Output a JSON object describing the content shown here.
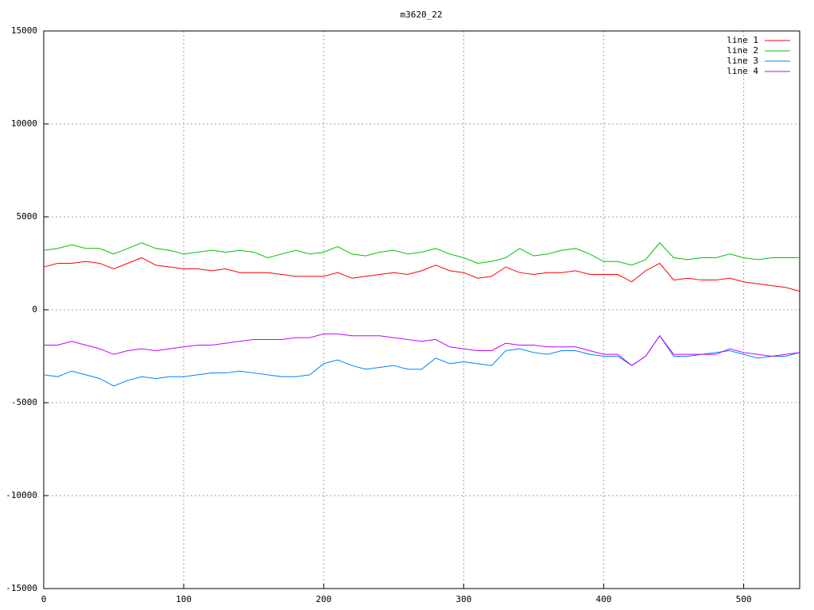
{
  "chart_data": {
    "type": "line",
    "title": "m3620_22",
    "x": [
      0,
      10,
      20,
      30,
      40,
      50,
      60,
      70,
      80,
      90,
      100,
      110,
      120,
      130,
      140,
      150,
      160,
      170,
      180,
      190,
      200,
      210,
      220,
      230,
      240,
      250,
      260,
      270,
      280,
      290,
      300,
      310,
      320,
      330,
      340,
      350,
      360,
      370,
      380,
      390,
      400,
      410,
      420,
      430,
      440,
      450,
      460,
      470,
      480,
      490,
      500,
      510,
      520,
      530,
      540
    ],
    "series": [
      {
        "name": "line 1",
        "color": "#ff0000",
        "values": [
          2300,
          2500,
          2500,
          2600,
          2500,
          2200,
          2500,
          2800,
          2400,
          2300,
          2200,
          2200,
          2100,
          2200,
          2000,
          2000,
          2000,
          1900,
          1800,
          1800,
          1800,
          2000,
          1700,
          1800,
          1900,
          2000,
          1900,
          2100,
          2400,
          2100,
          2000,
          1700,
          1800,
          2300,
          2000,
          1900,
          2000,
          2000,
          2100,
          1900,
          1900,
          1900,
          1500,
          2100,
          2500,
          1600,
          1700,
          1600,
          1600,
          1700,
          1500,
          1400,
          1300,
          1200,
          1000
        ]
      },
      {
        "name": "line 2",
        "color": "#00c000",
        "values": [
          3200,
          3300,
          3500,
          3300,
          3300,
          3000,
          3300,
          3600,
          3300,
          3200,
          3000,
          3100,
          3200,
          3100,
          3200,
          3100,
          2800,
          3000,
          3200,
          3000,
          3100,
          3400,
          3000,
          2900,
          3100,
          3200,
          3000,
          3100,
          3300,
          3000,
          2800,
          2500,
          2600,
          2800,
          3300,
          2900,
          3000,
          3200,
          3300,
          3000,
          2600,
          2600,
          2400,
          2700,
          3600,
          2800,
          2700,
          2800,
          2800,
          3000,
          2800,
          2700,
          2800,
          2800,
          2800
        ]
      },
      {
        "name": "line 3",
        "color": "#0080ff",
        "values": [
          -3500,
          -3600,
          -3300,
          -3500,
          -3700,
          -4100,
          -3800,
          -3600,
          -3700,
          -3600,
          -3600,
          -3500,
          -3400,
          -3400,
          -3300,
          -3400,
          -3500,
          -3600,
          -3600,
          -3500,
          -2900,
          -2700,
          -3000,
          -3200,
          -3100,
          -3000,
          -3200,
          -3200,
          -2600,
          -2900,
          -2800,
          -2900,
          -3000,
          -2200,
          -2100,
          -2300,
          -2400,
          -2200,
          -2200,
          -2400,
          -2500,
          -2500,
          -3000,
          -2500,
          -1400,
          -2500,
          -2500,
          -2400,
          -2300,
          -2200,
          -2400,
          -2600,
          -2500,
          -2500,
          -2300
        ]
      },
      {
        "name": "line 4",
        "color": "#c000ff",
        "values": [
          -1900,
          -1900,
          -1700,
          -1900,
          -2100,
          -2400,
          -2200,
          -2100,
          -2200,
          -2100,
          -2000,
          -1900,
          -1900,
          -1800,
          -1700,
          -1600,
          -1600,
          -1600,
          -1500,
          -1500,
          -1300,
          -1300,
          -1400,
          -1400,
          -1400,
          -1500,
          -1600,
          -1700,
          -1600,
          -2000,
          -2100,
          -2200,
          -2200,
          -1800,
          -1900,
          -1900,
          -2000,
          -2000,
          -2000,
          -2200,
          -2400,
          -2400,
          -3000,
          -2500,
          -1400,
          -2400,
          -2400,
          -2400,
          -2400,
          -2100,
          -2300,
          -2400,
          -2500,
          -2400,
          -2300
        ]
      }
    ],
    "xlim": [
      0,
      540
    ],
    "xticks": [
      0,
      100,
      200,
      300,
      400,
      500
    ],
    "ylim": [
      -15000,
      15000
    ],
    "yticks": [
      -15000,
      -10000,
      -5000,
      0,
      5000,
      10000,
      15000
    ],
    "grid": true,
    "legend": "top-right"
  }
}
